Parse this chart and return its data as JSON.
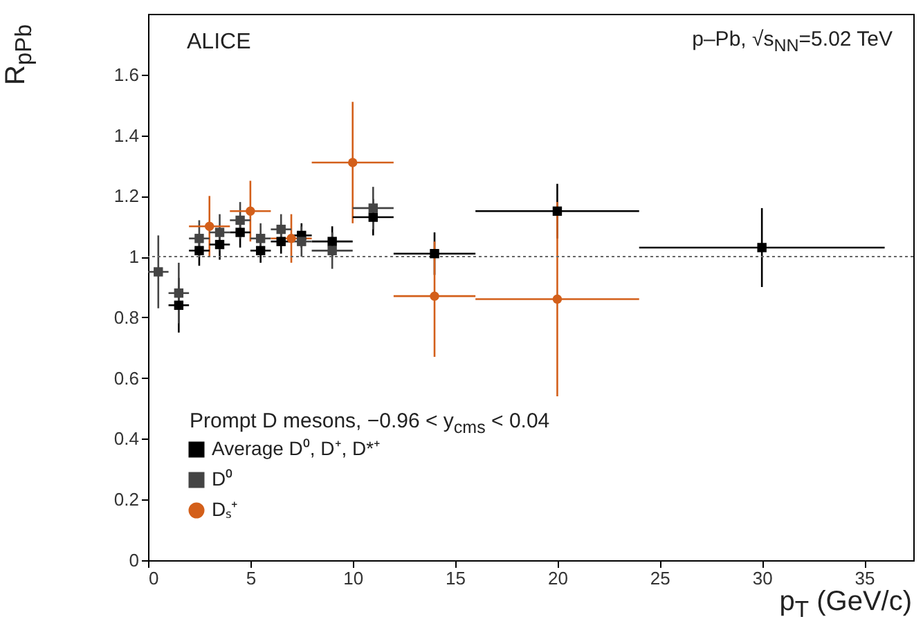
{
  "chart_data": {
    "type": "scatter",
    "xlabel": "p$_{T}$ (GeV/c)",
    "ylabel": "R$_{pPb}$",
    "legend_title": "Prompt D mesons, −0.96 < y$_{cms}$ < 0.04",
    "annotations": [
      "ALICE",
      "p–Pb, √s$_{NN}$=5.02 TeV"
    ],
    "xlim": [
      0,
      37.4
    ],
    "xticks": [
      0,
      5,
      10,
      15,
      20,
      25,
      30,
      35
    ],
    "ylim": [
      0,
      1.8
    ],
    "yticks": [
      0,
      0.2,
      0.4,
      0.6,
      0.8,
      1,
      1.2,
      1.4,
      1.6
    ],
    "grid": false,
    "legend": "bottom left",
    "ref_lines": [
      {
        "axis": "y",
        "value": 1,
        "line_style": "dotted",
        "color": "#666666"
      }
    ],
    "series": [
      {
        "name": "Average D⁰, D⁺, D*⁺",
        "color": "#000000",
        "marker": "square",
        "x": [
          1.5,
          2.5,
          3.5,
          4.5,
          5.5,
          6.5,
          7.5,
          9,
          11,
          14,
          20,
          30
        ],
        "values": [
          0.84,
          1.02,
          1.04,
          1.08,
          1.02,
          1.05,
          1.07,
          1.05,
          1.13,
          1.01,
          1.15,
          1.03
        ],
        "errors": [
          0.09,
          0.05,
          0.05,
          0.05,
          0.04,
          0.04,
          0.04,
          0.05,
          0.06,
          0.07,
          0.09,
          0.13
        ],
        "xerrors": [
          0.5,
          0.5,
          0.5,
          0.5,
          0.5,
          0.5,
          0.5,
          1,
          1,
          2,
          4,
          6
        ]
      },
      {
        "name": "D⁰",
        "color": "#444444",
        "marker": "square",
        "x": [
          0.5,
          1.5,
          2.5,
          3.5,
          4.5,
          5.5,
          6.5,
          7.5,
          9,
          11
        ],
        "values": [
          0.95,
          0.88,
          1.06,
          1.08,
          1.12,
          1.06,
          1.09,
          1.05,
          1.02,
          1.16
        ],
        "errors": [
          0.12,
          0.1,
          0.06,
          0.06,
          0.06,
          0.05,
          0.05,
          0.05,
          0.06,
          0.07
        ],
        "xerrors": [
          0.5,
          0.5,
          0.5,
          0.5,
          0.5,
          0.5,
          0.5,
          0.5,
          1,
          1
        ]
      },
      {
        "name": "Dₛ⁺",
        "color": "#d35f1a",
        "marker": "circle",
        "x": [
          3,
          5,
          7,
          10,
          14,
          20
        ],
        "values": [
          1.1,
          1.15,
          1.06,
          1.31,
          0.87,
          0.86
        ],
        "errors": [
          0.1,
          0.1,
          0.08,
          [
            1.11,
            1.51
          ],
          [
            0.67,
            1.05
          ],
          [
            0.54,
            1.18
          ]
        ],
        "xerrors": [
          1,
          1,
          1,
          2,
          2,
          4
        ]
      }
    ]
  }
}
